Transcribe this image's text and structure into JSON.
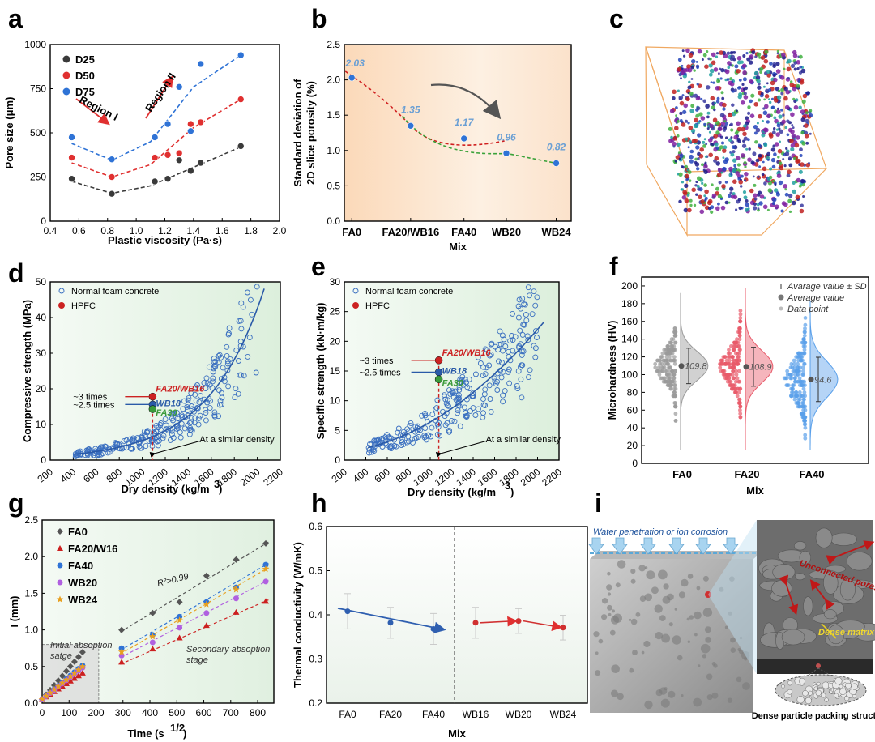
{
  "panel_letters": [
    "a",
    "b",
    "c",
    "d",
    "e",
    "f",
    "g",
    "h",
    "i"
  ],
  "colors": {
    "black": "#3a3a3a",
    "red": "#e03030",
    "blue": "#2f73d6",
    "green": "#3aa23a",
    "gray": "#9a9a9a",
    "pink": "#e85a6a",
    "lightblue": "#5aa0ea",
    "purple": "#b060e0",
    "orange": "#e8a020"
  },
  "chart_data": [
    {
      "id": "a",
      "type": "scatter",
      "xlabel": "Plastic viscosity (Pa·s)",
      "ylabel": "Pore size (μm)",
      "xlim": [
        0.4,
        2.0
      ],
      "ylim": [
        0,
        1000
      ],
      "xticks": [
        "0.4",
        "0.6",
        "0.8",
        "1.0",
        "1.2",
        "1.4",
        "1.6",
        "1.8",
        "2.0"
      ],
      "yticks": [
        "0",
        "250",
        "500",
        "750",
        "1000"
      ],
      "legend_placement": "top-left",
      "series": [
        {
          "name": "D25",
          "color": "#3a3a3a",
          "x": [
            0.55,
            0.83,
            1.13,
            1.22,
            1.3,
            1.38,
            1.45,
            1.73
          ],
          "y": [
            240,
            155,
            225,
            240,
            345,
            285,
            330,
            425
          ]
        },
        {
          "name": "D50",
          "color": "#e03030",
          "x": [
            0.55,
            0.83,
            1.13,
            1.22,
            1.3,
            1.38,
            1.45,
            1.73
          ],
          "y": [
            360,
            250,
            360,
            375,
            385,
            550,
            560,
            690
          ]
        },
        {
          "name": "D75",
          "color": "#2f73d6",
          "x": [
            0.55,
            0.83,
            1.13,
            1.22,
            1.3,
            1.38,
            1.45,
            1.73
          ],
          "y": [
            475,
            350,
            475,
            550,
            760,
            510,
            890,
            940
          ]
        }
      ],
      "annotations": [
        "Region I",
        "Region II"
      ]
    },
    {
      "id": "b",
      "type": "scatter",
      "xlabel": "Mix",
      "ylabel": "Standard deviation of 2D slice porosity (%)",
      "ylabel_lines": [
        "Standard deviation of",
        "2D slice porosity (%)"
      ],
      "categories": [
        "FA0",
        "FA20/WB16",
        "FA40",
        "WB20",
        "WB24"
      ],
      "x": [
        0,
        1.18,
        2.25,
        3.1,
        4.1
      ],
      "values": [
        2.03,
        1.35,
        1.17,
        0.96,
        0.82
      ],
      "value_labels": [
        "2.03",
        "1.35",
        "1.17",
        "0.96",
        "0.82"
      ],
      "ylim": [
        0,
        2.5
      ],
      "yticks": [
        "0.0",
        "0.5",
        "1.0",
        "1.5",
        "2.0",
        "2.5"
      ]
    },
    {
      "id": "d",
      "type": "scatter",
      "xlabel": "Dry density (kg/m³)",
      "ylabel": "Compressive strength (MPa)",
      "xlim": [
        200,
        2200
      ],
      "ylim": [
        0,
        50
      ],
      "xticks": [
        "200",
        "400",
        "600",
        "800",
        "1000",
        "1200",
        "1400",
        "1600",
        "1800",
        "2000",
        "2200"
      ],
      "yticks": [
        "0",
        "10",
        "20",
        "30",
        "40",
        "50"
      ],
      "legend": [
        "Normal foam concrete",
        "HPFC"
      ],
      "hpfc_points": [
        {
          "label": "FA20/WB16",
          "x": 1090,
          "y": 17.8,
          "ratio_label": "~3 times",
          "color": "#cc2222"
        },
        {
          "label": "WB18",
          "x": 1090,
          "y": 15.6,
          "ratio_label": "~2.5 times",
          "color": "#2a5aa8"
        },
        {
          "label": "FA30",
          "x": 1090,
          "y": 14.3,
          "ratio_label": "",
          "color": "#3a9a3a"
        }
      ],
      "annotation": "At a similar density",
      "fit": "exponential"
    },
    {
      "id": "e",
      "type": "scatter",
      "xlabel": "Dry density (kg/m³)",
      "ylabel": "Specific strength (kN·m/kg)",
      "xlim": [
        200,
        2200
      ],
      "ylim": [
        0,
        30
      ],
      "xticks": [
        "200",
        "400",
        "600",
        "800",
        "1000",
        "1200",
        "1400",
        "1600",
        "1800",
        "2000",
        "2200"
      ],
      "yticks": [
        "0",
        "5",
        "10",
        "15",
        "20",
        "25",
        "30"
      ],
      "legend": [
        "Normal foam concrete",
        "HPFC"
      ],
      "hpfc_points": [
        {
          "label": "FA20/WB16",
          "x": 1080,
          "y": 16.8,
          "ratio_label": "~3 times",
          "color": "#cc2222"
        },
        {
          "label": "WB18",
          "x": 1080,
          "y": 14.8,
          "ratio_label": "~2.5 times",
          "color": "#2a5aa8"
        },
        {
          "label": "FA30",
          "x": 1080,
          "y": 13.6,
          "ratio_label": "",
          "color": "#3a9a3a"
        }
      ],
      "annotation": "At a similar density"
    },
    {
      "id": "f",
      "type": "scatter",
      "xlabel": "Mix",
      "ylabel": "Microhardness (HV)",
      "categories": [
        "FA0",
        "FA20",
        "FA40"
      ],
      "means": [
        109.8,
        108.9,
        94.6
      ],
      "mean_labels": [
        "109.8",
        "108.9",
        "94.6"
      ],
      "sd": [
        20,
        22,
        25
      ],
      "ranges": [
        [
          15,
          192
        ],
        [
          15,
          198
        ],
        [
          15,
          183
        ]
      ],
      "ylim": [
        0,
        210
      ],
      "yticks": [
        "0",
        "20",
        "40",
        "60",
        "80",
        "100",
        "120",
        "140",
        "160",
        "180",
        "200"
      ],
      "legend": [
        "Avarage value ± SD",
        "Average value",
        "Data point"
      ],
      "colors": [
        "#9a9a9a",
        "#e85a6a",
        "#5aa0ea"
      ]
    },
    {
      "id": "g",
      "type": "scatter",
      "xlabel": "Time (s^1/2)",
      "xlabel_text": "Time (s",
      "xlabel_sup": "1/2",
      "xlabel_end": ")",
      "ylabel": "I (mm)",
      "xlim": [
        0,
        860
      ],
      "ylim": [
        0,
        2.5
      ],
      "xticks": [
        "0",
        "100",
        "200",
        "300",
        "400",
        "500",
        "600",
        "700",
        "800"
      ],
      "yticks": [
        "0.0",
        "0.5",
        "1.0",
        "1.5",
        "2.0",
        "2.5"
      ],
      "x_secondary": [
        295,
        410,
        510,
        610,
        720,
        830
      ],
      "series": [
        {
          "name": "FA0",
          "color": "#555555",
          "marker": "diamond",
          "y": [
            1.0,
            1.23,
            1.38,
            1.74,
            1.96,
            2.18
          ]
        },
        {
          "name": "FA20/W16",
          "color": "#cc2020",
          "marker": "triangle",
          "y": [
            0.56,
            0.74,
            0.89,
            1.06,
            1.24,
            1.39
          ]
        },
        {
          "name": "FA40",
          "color": "#2f73d6",
          "marker": "circle",
          "y": [
            0.75,
            0.93,
            1.18,
            1.38,
            1.58,
            1.89
          ]
        },
        {
          "name": "WB20",
          "color": "#b060e0",
          "marker": "circle",
          "y": [
            0.65,
            0.83,
            1.03,
            1.23,
            1.43,
            1.66
          ]
        },
        {
          "name": "WB24",
          "color": "#e8a020",
          "marker": "star",
          "y": [
            0.7,
            0.91,
            1.13,
            1.35,
            1.55,
            1.83
          ]
        }
      ],
      "annotations": [
        "R²>0.99",
        "Initial absoption satge",
        "Secondary absoption stage"
      ]
    },
    {
      "id": "h",
      "type": "scatter",
      "xlabel": "Mix",
      "ylabel": "Thermal conductivity (W/mK)",
      "categories": [
        "FA0",
        "FA20",
        "FA40",
        "WB16",
        "WB20",
        "WB24"
      ],
      "values": [
        0.408,
        0.382,
        0.368,
        0.382,
        0.386,
        0.371
      ],
      "errors": [
        0.04,
        0.035,
        0.035,
        0.035,
        0.028,
        0.028
      ],
      "colors": [
        "#2f5fb0",
        "#2f5fb0",
        "#2f5fb0",
        "#d03030",
        "#d03030",
        "#d03030"
      ],
      "ylim": [
        0.2,
        0.6
      ],
      "yticks": [
        "0.2",
        "0.3",
        "0.4",
        "0.5",
        "0.6"
      ]
    }
  ],
  "panel_i": {
    "top_label": "Water penetration or ion corrosion",
    "zoom_labels": [
      "Unconnected pores",
      "Dense matrix"
    ],
    "bottom_label": "Dense particle packing structure"
  }
}
